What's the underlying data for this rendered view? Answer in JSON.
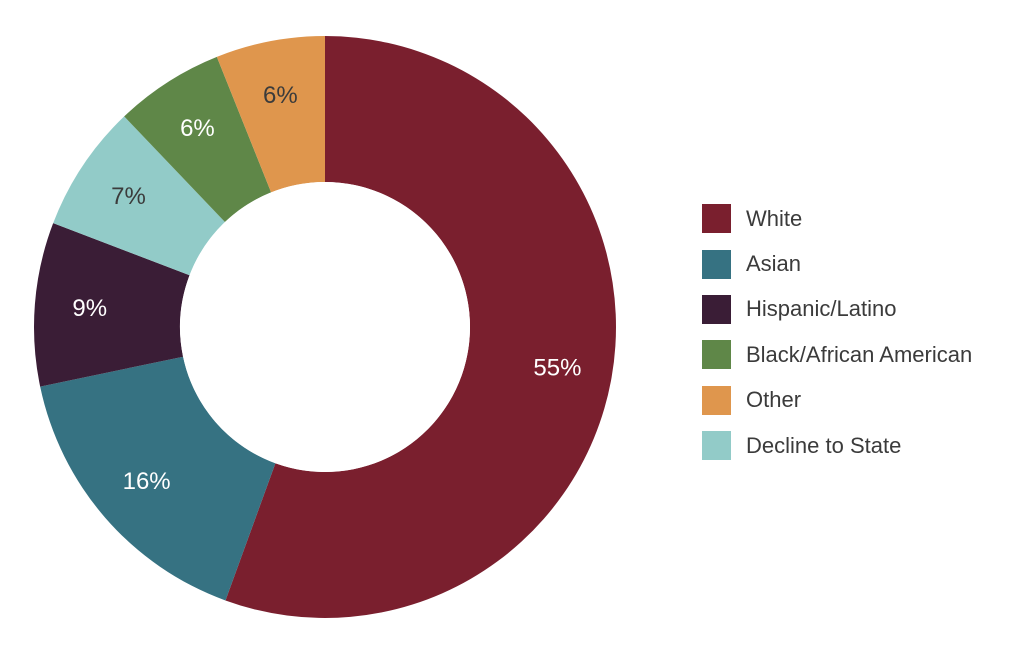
{
  "chart_data": {
    "type": "pie",
    "donut": true,
    "title": "",
    "slices": [
      {
        "label": "White",
        "value": 55,
        "display": "55%",
        "color": "#7a1f2e"
      },
      {
        "label": "Asian",
        "value": 16,
        "display": "16%",
        "color": "#367282"
      },
      {
        "label": "Hispanic/Latino",
        "value": 9,
        "display": "9%",
        "color": "#3a1d36"
      },
      {
        "label": "Decline to State",
        "value": 7,
        "display": "7%",
        "color": "#92cbc8"
      },
      {
        "label": "Black/African American",
        "value": 6,
        "display": "6%",
        "color": "#5f8748"
      },
      {
        "label": "Other",
        "value": 6,
        "display": "6%",
        "color": "#df964d"
      }
    ],
    "legend": {
      "position": "right",
      "entries": [
        {
          "label": "White",
          "color": "#7a1f2e"
        },
        {
          "label": "Asian",
          "color": "#367282"
        },
        {
          "label": "Hispanic/Latino",
          "color": "#3a1d36"
        },
        {
          "label": "Black/African American",
          "color": "#5f8748"
        },
        {
          "label": "Other",
          "color": "#df964d"
        },
        {
          "label": "Decline to State",
          "color": "#92cbc8"
        }
      ]
    }
  }
}
